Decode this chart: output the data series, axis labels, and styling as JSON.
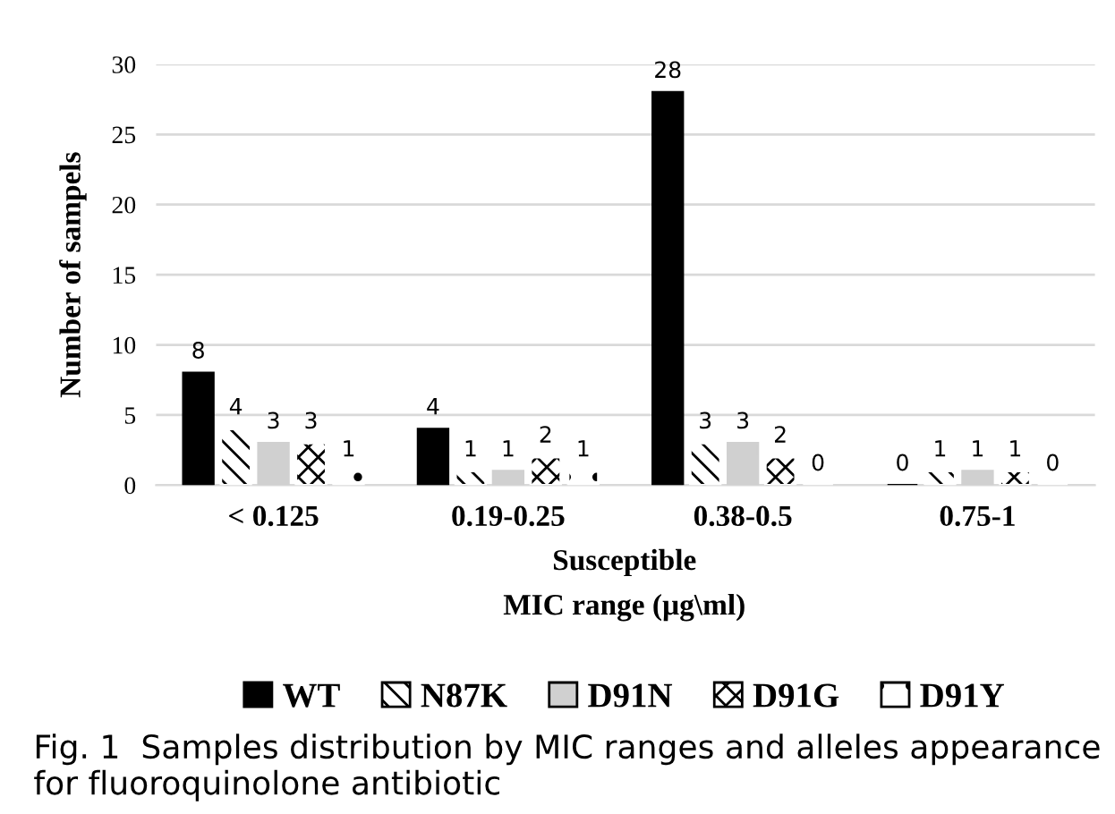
{
  "chart_data": {
    "type": "bar",
    "categories": [
      "< 0.125",
      "0.19-0.25",
      "0.38-0.5",
      "0.75-1"
    ],
    "series": [
      {
        "name": "WT",
        "color": "#000000",
        "values": [
          8,
          4,
          28,
          0
        ]
      },
      {
        "name": "N87K",
        "color": "#ffffff",
        "values": [
          4,
          1,
          3,
          1
        ]
      },
      {
        "name": "D91N",
        "color": "#d0d0d0",
        "values": [
          3,
          1,
          3,
          1
        ]
      },
      {
        "name": "D91G",
        "color": "#ffffff",
        "values": [
          3,
          2,
          2,
          1
        ]
      },
      {
        "name": "D91Y",
        "color": "#ffffff",
        "values": [
          1,
          1,
          0,
          0
        ]
      }
    ],
    "ylim": [
      0,
      30
    ],
    "yticks": [
      0,
      5,
      10,
      15,
      20,
      25,
      30
    ],
    "ylabel": "Number of sampels",
    "xlabel": "MIC range (µg\\ml)",
    "grid": "y",
    "legend": "bottom",
    "data_labels": true,
    "annotations": [
      "Susceptible",
      "Fig. 1  Samples distribution by MIC ranges and alleles appearance for fluoroquinolone antibiotic"
    ]
  }
}
